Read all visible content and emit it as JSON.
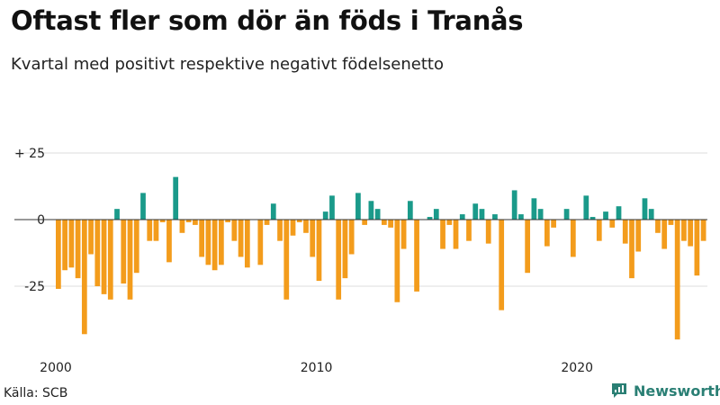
{
  "header": {
    "title": "Oftast fler som dör än föds i Tranås",
    "subtitle": "Kvartal med positivt respektive negativt födelsenetto"
  },
  "footer": {
    "source": "Källa: SCB",
    "brand": "Newsworthy"
  },
  "colors": {
    "positive": "#1a9a8a",
    "negative": "#f39c1c",
    "grid": "#dddddd",
    "zero_line": "#333333",
    "brand": "#2a7f74"
  },
  "chart_data": {
    "type": "bar",
    "ylim": [
      -45,
      30
    ],
    "y_ticks": [
      {
        "value": 25,
        "label": "+ 25"
      },
      {
        "value": 0,
        "label": "0"
      },
      {
        "value": -25,
        "label": "-25"
      }
    ],
    "x_ticks": [
      "2000",
      "2010",
      "2020"
    ],
    "grid": true,
    "start_year": 2000,
    "quarters_per_year": 4,
    "values": [
      -26,
      -19,
      -18,
      -22,
      -43,
      -13,
      -25,
      -28,
      -30,
      4,
      -24,
      -30,
      -20,
      10,
      -8,
      -8,
      -1,
      -16,
      16,
      -5,
      -1,
      -2,
      -14,
      -17,
      -19,
      -17,
      -1,
      -8,
      -14,
      -18,
      0,
      -17,
      -2,
      6,
      -8,
      -30,
      -6,
      -1,
      -5,
      -14,
      -23,
      3,
      9,
      -30,
      -22,
      -13,
      10,
      -2,
      7,
      4,
      -2,
      -3,
      -31,
      -11,
      7,
      -27,
      0,
      1,
      4,
      -11,
      -2,
      -11,
      2,
      -8,
      6,
      4,
      -9,
      2,
      -34,
      0,
      11,
      2,
      -20,
      8,
      4,
      -10,
      -3,
      0,
      4,
      -14,
      0,
      9,
      1,
      -8,
      3,
      -3,
      5,
      -9,
      -22,
      -12,
      8,
      4,
      -5,
      -11,
      -2,
      -45,
      -8,
      -10,
      -21,
      -8
    ]
  }
}
